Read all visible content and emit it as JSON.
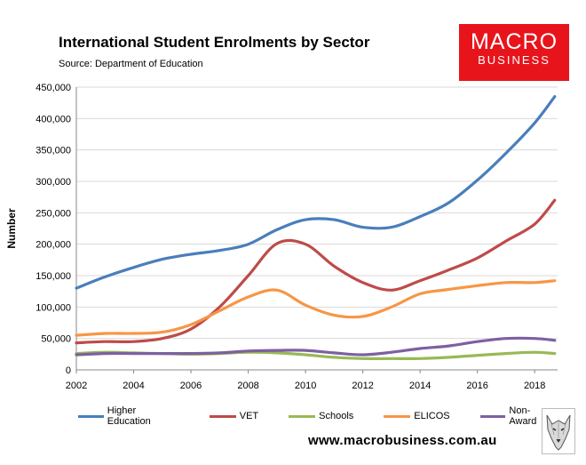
{
  "chart_data": {
    "type": "line",
    "title": "International Student Enrolments by Sector",
    "subtitle": "Source: Department of Education",
    "ylabel": "Number",
    "xlabel": "",
    "xlim": [
      2002,
      2018.8
    ],
    "ylim": [
      0,
      450000
    ],
    "x_ticks": [
      "2002",
      "2004",
      "2006",
      "2008",
      "2010",
      "2012",
      "2014",
      "2016",
      "2018"
    ],
    "y_ticks": [
      "0",
      "50,000",
      "100,000",
      "150,000",
      "200,000",
      "250,000",
      "300,000",
      "350,000",
      "400,000",
      "450,000"
    ],
    "grid": "horizontal",
    "legend_position": "bottom",
    "x": [
      2002,
      2003,
      2004,
      2005,
      2006,
      2007,
      2008,
      2009,
      2010,
      2011,
      2012,
      2013,
      2014,
      2015,
      2016,
      2017,
      2018,
      2018.7
    ],
    "series": [
      {
        "name": "Higher Education",
        "color": "#4a7ebb",
        "values": [
          130000,
          148000,
          163000,
          176000,
          184000,
          190000,
          200000,
          223000,
          239000,
          239000,
          227000,
          227000,
          244000,
          266000,
          302000,
          345000,
          393000,
          435000
        ]
      },
      {
        "name": "VET",
        "color": "#be4b48",
        "values": [
          43000,
          45000,
          45000,
          50000,
          65000,
          100000,
          150000,
          201000,
          200000,
          165000,
          139000,
          127000,
          142000,
          159000,
          178000,
          205000,
          232000,
          270000
        ]
      },
      {
        "name": "Schools",
        "color": "#98b954",
        "values": [
          26000,
          28000,
          27000,
          26000,
          25000,
          26000,
          28000,
          27000,
          24000,
          20000,
          18000,
          18000,
          18000,
          20000,
          23000,
          26000,
          28000,
          26000
        ]
      },
      {
        "name": "ELICOS",
        "color": "#f79646",
        "values": [
          55000,
          58000,
          58000,
          60000,
          72000,
          94000,
          116000,
          127000,
          103000,
          87000,
          85000,
          100000,
          121000,
          128000,
          134000,
          139000,
          139000,
          142000
        ]
      },
      {
        "name": "Non-Award",
        "color": "#7d60a0",
        "values": [
          24000,
          26000,
          26000,
          26000,
          26000,
          27000,
          30000,
          31000,
          31000,
          27000,
          24000,
          28000,
          34000,
          38000,
          45000,
          50000,
          50000,
          47000
        ]
      }
    ]
  },
  "logo": {
    "line1": "MACRO",
    "line2": "BUSINESS"
  },
  "footer": "www.macrobusiness.com.au"
}
